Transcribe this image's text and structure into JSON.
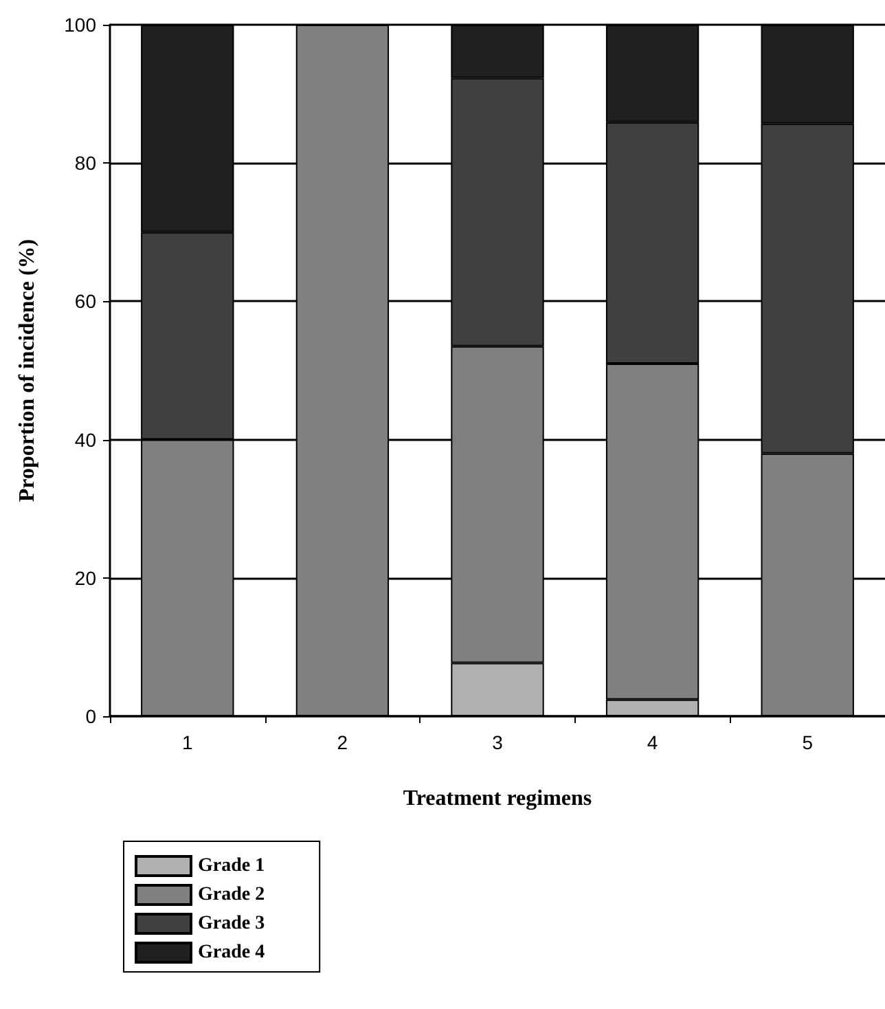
{
  "chart_data": {
    "type": "bar",
    "stacked": true,
    "xlabel": "Treatment regimens",
    "ylabel": "Proportion of incidence (%)",
    "categories": [
      "1",
      "2",
      "3",
      "4",
      "5"
    ],
    "series": [
      {
        "name": "Grade 1",
        "color": "#b0b0b0",
        "values": [
          0,
          0,
          7.7,
          2.4,
          0
        ]
      },
      {
        "name": "Grade 2",
        "color": "#808080",
        "values": [
          40,
          100,
          45.8,
          48.6,
          38
        ]
      },
      {
        "name": "Grade 3",
        "color": "#404040",
        "values": [
          30,
          0,
          38.8,
          34.9,
          47.7
        ]
      },
      {
        "name": "Grade 4",
        "color": "#202020",
        "values": [
          30,
          0,
          7.7,
          14.1,
          14.3
        ]
      }
    ],
    "ylim": [
      0,
      100
    ],
    "yticks": [
      0,
      20,
      40,
      60,
      80,
      100
    ],
    "grid": "y",
    "legend": "bottom left"
  }
}
